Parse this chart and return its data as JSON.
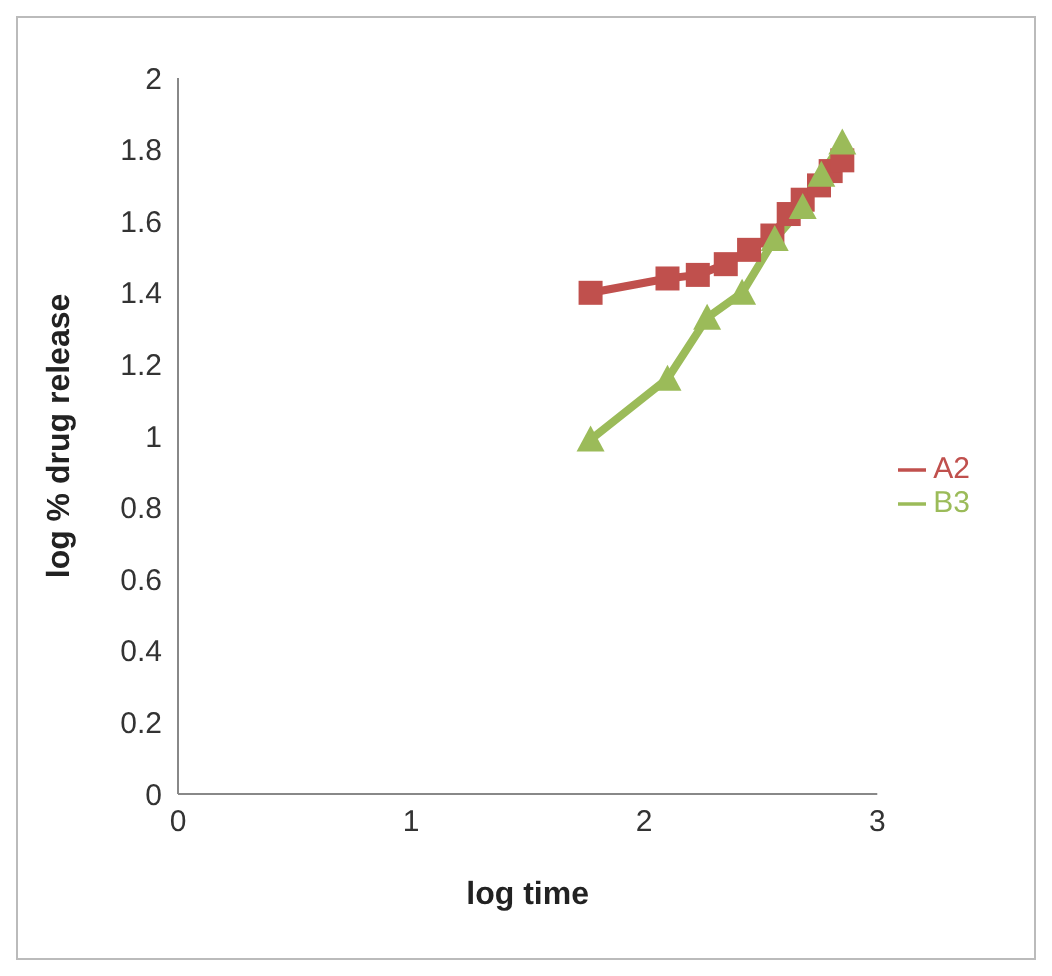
{
  "chart_data": {
    "type": "line",
    "xlabel": "log time",
    "ylabel": "log % drug release",
    "xlim": [
      0,
      3
    ],
    "xticks": [
      0,
      1,
      2,
      3
    ],
    "ylim": [
      0,
      2
    ],
    "yticks": [
      0,
      0.2,
      0.4,
      0.6,
      0.8,
      1,
      1.2,
      1.4,
      1.6,
      1.8,
      2
    ],
    "grid": false,
    "legend": "right",
    "series": [
      {
        "name": "A2",
        "color": "#c0504d",
        "marker": "square",
        "x": [
          1.77,
          2.1,
          2.23,
          2.35,
          2.45,
          2.55,
          2.62,
          2.68,
          2.75,
          2.8,
          2.85
        ],
        "values": [
          1.4,
          1.44,
          1.45,
          1.48,
          1.52,
          1.56,
          1.62,
          1.66,
          1.7,
          1.74,
          1.77
        ]
      },
      {
        "name": "B3",
        "color": "#9bbb59",
        "marker": "triangle",
        "x": [
          1.77,
          2.1,
          2.27,
          2.42,
          2.56,
          2.68,
          2.76,
          2.85
        ],
        "values": [
          0.99,
          1.16,
          1.33,
          1.4,
          1.55,
          1.64,
          1.73,
          1.82
        ]
      }
    ]
  }
}
